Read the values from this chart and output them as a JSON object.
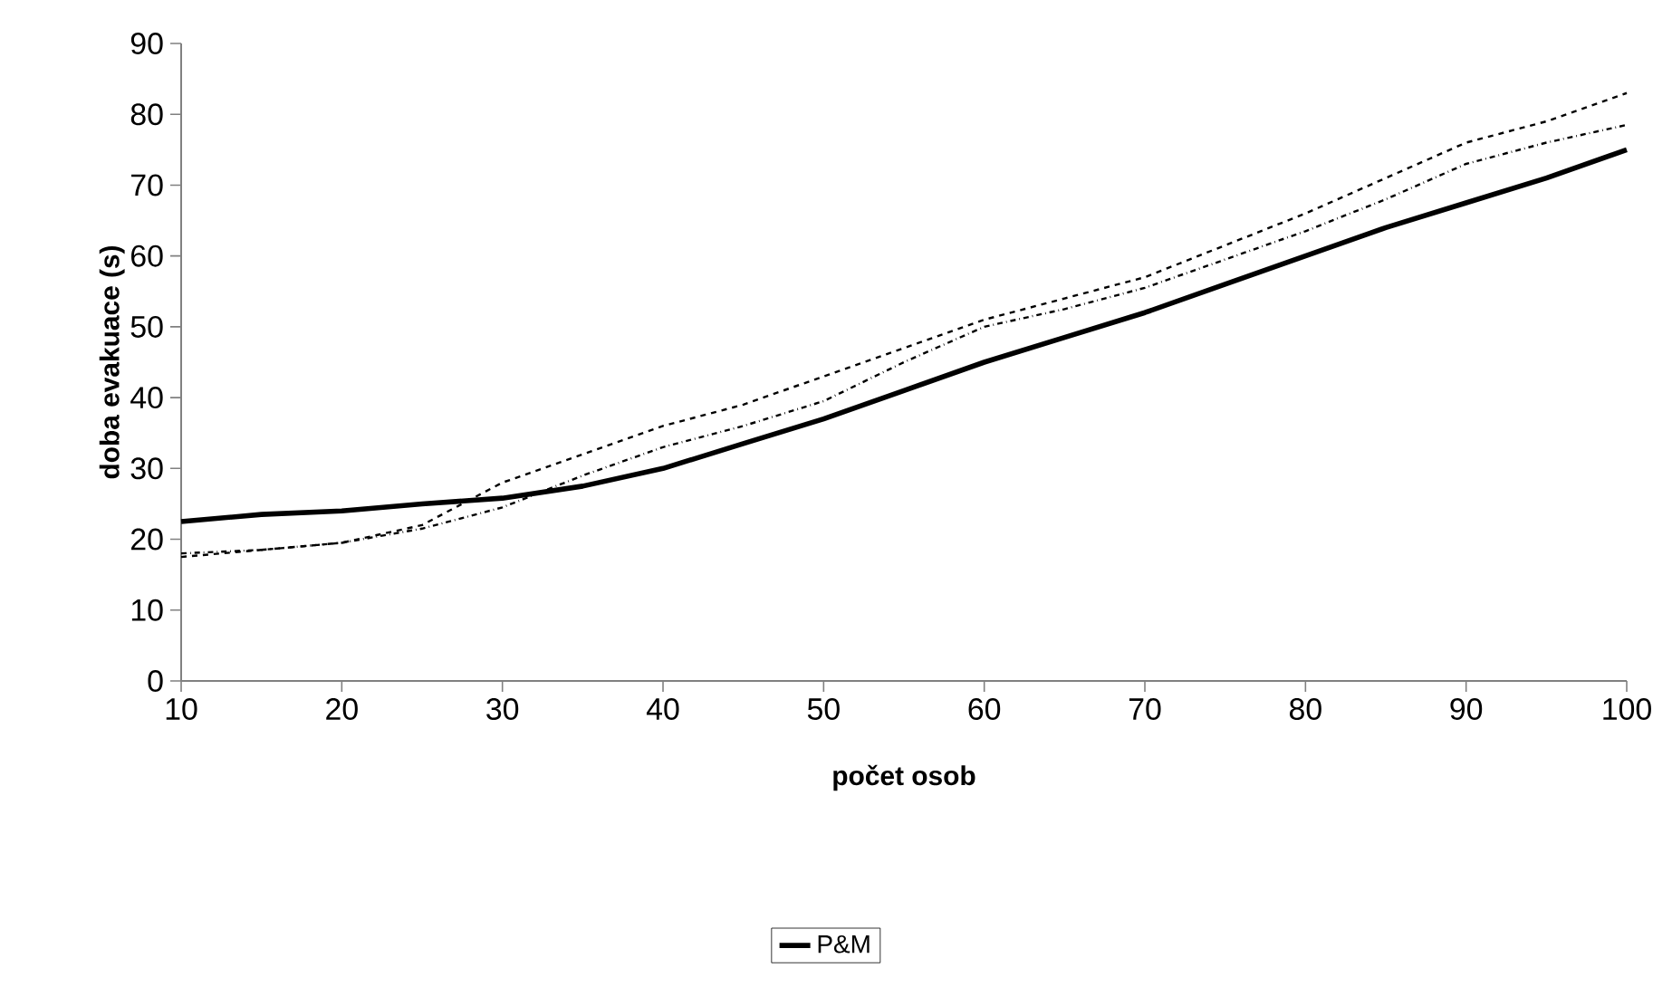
{
  "chart_data": {
    "type": "line",
    "xlabel": "počet osob",
    "ylabel": "doba evakuace (s)",
    "x": [
      10,
      15,
      20,
      25,
      30,
      35,
      40,
      45,
      50,
      55,
      60,
      65,
      70,
      75,
      80,
      85,
      90,
      95,
      100
    ],
    "xlim": [
      10,
      100
    ],
    "xticks": [
      10,
      20,
      30,
      40,
      50,
      60,
      70,
      80,
      90,
      100
    ],
    "ylim": [
      0,
      90
    ],
    "yticks": [
      0,
      10,
      20,
      30,
      40,
      50,
      60,
      70,
      80,
      90
    ],
    "grid": false,
    "legend": "bottom",
    "marker": "none",
    "series": [
      {
        "color": "#000000",
        "line_style": "dotted",
        "values": [
          17.5,
          18.5,
          19.5,
          22,
          28,
          32,
          36,
          39,
          43,
          47,
          51,
          54,
          57,
          61.5,
          66,
          71,
          76,
          79,
          83
        ]
      },
      {
        "color": "#000000",
        "line_style": "dashed",
        "values": [
          18,
          18.5,
          19.5,
          21.5,
          24.5,
          29,
          33,
          36,
          39.5,
          45,
          50,
          52.5,
          55.5,
          59.5,
          63.5,
          68,
          73,
          76,
          78.5
        ]
      },
      {
        "name": "P&M",
        "color": "#000000",
        "line_style": "solid",
        "values": [
          22.5,
          23.5,
          24,
          25,
          25.8,
          27.5,
          30,
          33.5,
          37,
          41,
          45,
          48.5,
          52,
          56,
          60,
          64,
          67.5,
          71,
          75
        ]
      }
    ]
  }
}
